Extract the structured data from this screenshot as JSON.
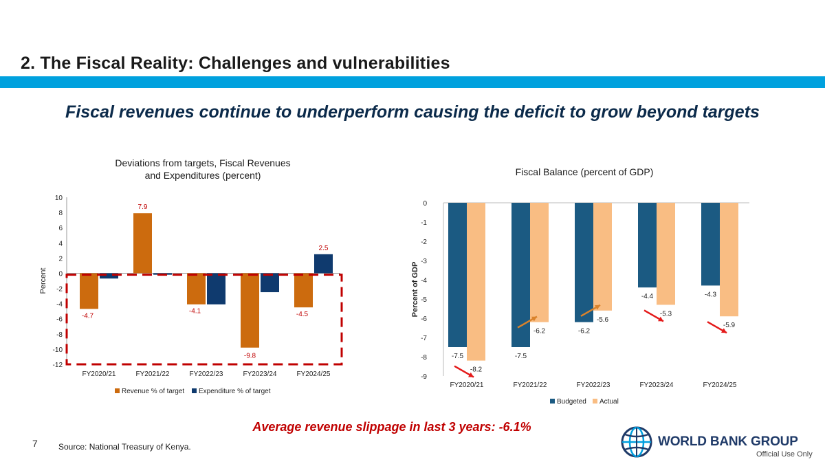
{
  "slide": {
    "title": "2. The Fiscal Reality: Challenges and vulnerabilities",
    "headline": "Fiscal revenues continue to underperform causing the deficit to grow beyond targets",
    "slippage": "Average revenue slippage in last 3 years: -6.1%",
    "page_number": "7",
    "source": "Source: National Treasury of Kenya.",
    "logo_text": "WORLD BANK GROUP",
    "classification": "Official Use Only"
  },
  "colors": {
    "accent_band": "#00a1de",
    "revenue": "#cc6b0e",
    "expenditure": "#0f3a6e",
    "budgeted": "#1b5a82",
    "actual": "#f9bd83",
    "label_red": "#c00000",
    "arrow_red": "#e41a1a",
    "arrow_orange": "#d9822b"
  },
  "chart_data": [
    {
      "type": "bar",
      "title_line1": "Deviations from targets, Fiscal Revenues",
      "title_line2": "and Expenditures (percent)",
      "ylabel": "Percent",
      "xlabel": "",
      "ylim": [
        -12,
        10
      ],
      "yticks": [
        10,
        8,
        6,
        4,
        2,
        0,
        -2,
        -4,
        -6,
        -8,
        -10,
        -12
      ],
      "categories": [
        "FY2020/21",
        "FY2021/22",
        "FY2022/23",
        "FY2023/24",
        "FY2024/25"
      ],
      "series": [
        {
          "name": "Revenue % of target",
          "values": [
            -4.7,
            7.9,
            -4.1,
            -9.8,
            -4.5
          ],
          "labels": [
            "-4.7",
            "7.9",
            "-4.1",
            "-9.8",
            "-4.5"
          ]
        },
        {
          "name": "Expenditure % of target",
          "values": [
            -0.7,
            -0.2,
            -4.1,
            -2.5,
            2.5
          ],
          "labels": [
            "",
            "",
            "",
            "",
            "2.5"
          ]
        }
      ],
      "legend_position": "bottom",
      "annotation": "dashed red box highlighting negative deviations"
    },
    {
      "type": "bar",
      "title": "Fiscal Balance (percent of GDP)",
      "ylabel": "Percent of GDP",
      "xlabel": "",
      "ylim": [
        -9,
        0
      ],
      "yticks": [
        0,
        -1,
        -2,
        -3,
        -4,
        -5,
        -6,
        -7,
        -8,
        -9
      ],
      "categories": [
        "FY2020/21",
        "FY2021/22",
        "FY2022/23",
        "FY2023/24",
        "FY2024/25"
      ],
      "series": [
        {
          "name": "Budgeted",
          "values": [
            -7.5,
            -7.5,
            -6.2,
            -4.4,
            -4.3
          ],
          "labels": [
            "-7.5",
            "-7.5",
            "-6.2",
            "-4.4",
            "-4.3"
          ]
        },
        {
          "name": "Actual",
          "values": [
            -8.2,
            -6.2,
            -5.6,
            -5.3,
            -5.9
          ],
          "labels": [
            "-8.2",
            "-6.2",
            "-5.6",
            "-5.3",
            "-5.9"
          ]
        }
      ],
      "trend_arrows": [
        "down",
        "up",
        "up",
        "down",
        "down"
      ],
      "legend_position": "bottom"
    }
  ]
}
